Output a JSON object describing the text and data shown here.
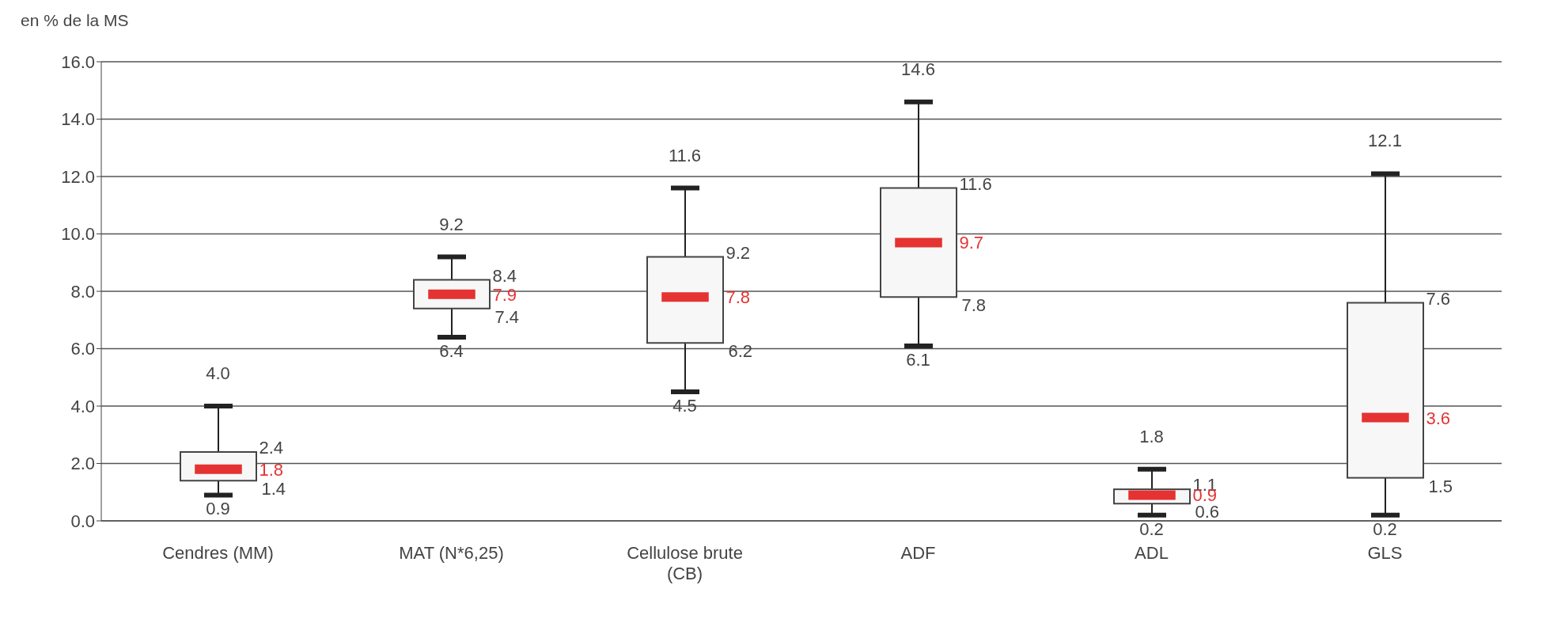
{
  "chart_data": {
    "type": "box",
    "ylabel": "en % de la MS",
    "categories": [
      "Cendres (MM)",
      "MAT (N*6,25)",
      "Cellulose brute (CB)",
      "ADF",
      "ADL",
      "GLS"
    ],
    "boxes": [
      {
        "low": 0.9,
        "q1": 1.4,
        "median": 1.8,
        "q3": 2.4,
        "high": 4.0
      },
      {
        "low": 6.4,
        "q1": 7.4,
        "median": 7.9,
        "q3": 8.4,
        "high": 9.2
      },
      {
        "low": 4.5,
        "q1": 6.2,
        "median": 7.8,
        "q3": 9.2,
        "high": 11.6
      },
      {
        "low": 6.1,
        "q1": 7.8,
        "median": 9.7,
        "q3": 11.6,
        "high": 14.6
      },
      {
        "low": 0.2,
        "q1": 0.6,
        "median": 0.9,
        "q3": 1.1,
        "high": 1.8
      },
      {
        "low": 0.2,
        "q1": 1.5,
        "median": 3.6,
        "q3": 7.6,
        "high": 12.1
      }
    ],
    "ylim": [
      0,
      16
    ],
    "yticks": [
      {
        "value": 0,
        "label": "0.0"
      },
      {
        "value": 2,
        "label": "2.0"
      },
      {
        "value": 4,
        "label": "4.0"
      },
      {
        "value": 6,
        "label": "6.0"
      },
      {
        "value": 8,
        "label": "8.0"
      },
      {
        "value": 10,
        "label": "10.0"
      },
      {
        "value": 12,
        "label": "12.0"
      },
      {
        "value": 14,
        "label": "14.0"
      },
      {
        "value": 16,
        "label": "16.0"
      }
    ],
    "grid": "y",
    "annotations": [
      {
        "text": "4.0",
        "x": "Cendres (MM)",
        "y": 4.0
      },
      {
        "text": "2.4",
        "x": "Cendres (MM)",
        "y": 2.4
      },
      {
        "text": "1.8",
        "x": "Cendres (MM)",
        "y": 1.8
      },
      {
        "text": "1.4",
        "x": "Cendres (MM)",
        "y": 1.4
      },
      {
        "text": "0.9",
        "x": "Cendres (MM)",
        "y": 0.9
      },
      {
        "text": "9.2",
        "x": "MAT (N*6,25)",
        "y": 9.2
      },
      {
        "text": "8.4",
        "x": "MAT (N*6,25)",
        "y": 8.4
      },
      {
        "text": "7.9",
        "x": "MAT (N*6,25)",
        "y": 7.9
      },
      {
        "text": "7.4",
        "x": "MAT (N*6,25)",
        "y": 7.4
      },
      {
        "text": "6.4",
        "x": "MAT (N*6,25)",
        "y": 6.4
      },
      {
        "text": "11.6",
        "x": "Cellulose brute (CB)",
        "y": 11.6
      },
      {
        "text": "9.2",
        "x": "Cellulose brute (CB)",
        "y": 9.2
      },
      {
        "text": "7.8",
        "x": "Cellulose brute (CB)",
        "y": 7.8
      },
      {
        "text": "6.2",
        "x": "Cellulose brute (CB)",
        "y": 6.2
      },
      {
        "text": "4.5",
        "x": "Cellulose brute (CB)",
        "y": 4.5
      },
      {
        "text": "14.6",
        "x": "ADF",
        "y": 14.6
      },
      {
        "text": "11.6",
        "x": "ADF",
        "y": 11.6
      },
      {
        "text": "9.7",
        "x": "ADF",
        "y": 9.7
      },
      {
        "text": "7.8",
        "x": "ADF",
        "y": 7.8
      },
      {
        "text": "6.1",
        "x": "ADF",
        "y": 6.1
      },
      {
        "text": "1.8",
        "x": "ADL",
        "y": 1.8
      },
      {
        "text": "1.1",
        "x": "ADL",
        "y": 1.1
      },
      {
        "text": "0.9",
        "x": "ADL",
        "y": 0.9
      },
      {
        "text": "0.6",
        "x": "ADL",
        "y": 0.6
      },
      {
        "text": "0.2",
        "x": "ADL",
        "y": 0.2
      },
      {
        "text": "12.1",
        "x": "GLS",
        "y": 12.1
      },
      {
        "text": "7.6",
        "x": "GLS",
        "y": 7.6
      },
      {
        "text": "3.6",
        "x": "GLS",
        "y": 3.6
      },
      {
        "text": "1.5",
        "x": "GLS",
        "y": 1.5
      },
      {
        "text": "0.2",
        "x": "GLS",
        "y": 0.2
      }
    ]
  }
}
